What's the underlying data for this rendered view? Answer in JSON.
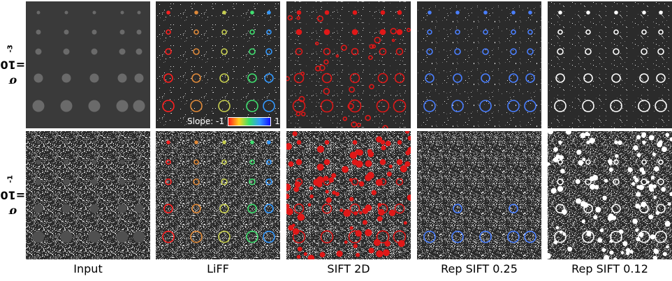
{
  "rows": [
    {
      "sigma_label": "σ",
      "eq": "=10",
      "exp": "-3"
    },
    {
      "sigma_label": "σ",
      "eq": "=10",
      "exp": "-1"
    }
  ],
  "columns": [
    "Input",
    "LiFF",
    "SIFT 2D",
    "Rep SIFT 0.25",
    "Rep SIFT 0.12"
  ],
  "legend": {
    "label": "Slope: -1",
    "max_label": "1"
  },
  "colors": {
    "liff_scale": [
      "#ff2020",
      "#e08a3a",
      "#c8d050",
      "#40e070",
      "#3399ff",
      "#1a1aff"
    ],
    "sift": "#e01818",
    "rep": "#4a7fff",
    "rep012": "#ffffff"
  }
}
